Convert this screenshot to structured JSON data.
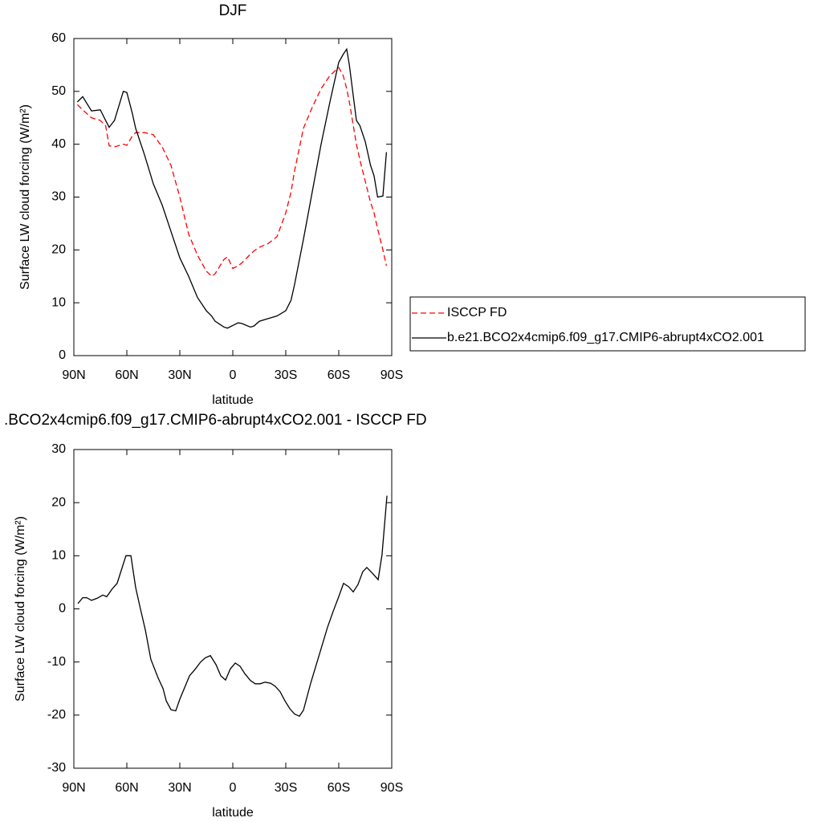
{
  "chart_data": [
    {
      "type": "line",
      "title": "DJF",
      "x_label": "latitude",
      "y_label": "Surface LW cloud forcing (W/m²)",
      "x": [
        88,
        85,
        80,
        75,
        72,
        70,
        67,
        62,
        60,
        57,
        55,
        50,
        45,
        40,
        35,
        30,
        25,
        20,
        15,
        12,
        10,
        5,
        3,
        0,
        -3,
        -5,
        -10,
        -12,
        -15,
        -20,
        -25,
        -30,
        -33,
        -35,
        -40,
        -45,
        -50,
        -55,
        -60,
        -62.5,
        -64.5,
        -66,
        -70,
        -72,
        -75,
        -78,
        -80,
        -82,
        -85,
        -87
      ],
      "series": [
        {
          "name": "ISCCP FD",
          "color": "#ff0000",
          "dashed": true,
          "values": [
            47.5,
            46.5,
            45,
            44.5,
            43.5,
            39.7,
            39.5,
            40,
            39.8,
            41.5,
            42.2,
            42.2,
            41.8,
            39.5,
            36,
            30,
            23,
            19,
            16,
            15,
            15.5,
            18.2,
            18.7,
            16.5,
            17,
            17.5,
            19.2,
            19.8,
            20.5,
            21.2,
            22.5,
            27,
            31,
            35,
            43,
            47,
            50.5,
            53,
            54.5,
            53,
            50.5,
            48,
            40,
            37,
            33,
            29,
            27,
            24,
            20,
            17
          ]
        },
        {
          "name": "b.e21.BCO2x4cmip6.f09_g17.CMIP6-abrupt4xCO2.001",
          "color": "#000000",
          "dashed": false,
          "values": [
            48,
            49,
            46.3,
            46.5,
            44.5,
            43.2,
            44.5,
            50,
            49.8,
            46,
            43,
            38,
            32.5,
            28.5,
            23.5,
            18.5,
            15,
            11,
            8.5,
            7.5,
            6.5,
            5.4,
            5.2,
            5.7,
            6.2,
            6.1,
            5.4,
            5.6,
            6.5,
            7,
            7.5,
            8.5,
            10.5,
            13.5,
            22,
            31,
            40,
            48,
            55.5,
            57,
            58,
            55,
            44.5,
            43.5,
            40.5,
            36,
            34,
            30,
            30.2,
            38.5
          ]
        }
      ],
      "xlim": [
        90,
        -90
      ],
      "xticks": [
        {
          "value": 90,
          "label": "90N"
        },
        {
          "value": 60,
          "label": "60N"
        },
        {
          "value": 30,
          "label": "30N"
        },
        0,
        {
          "value": -30,
          "label": "30S"
        },
        {
          "value": -60,
          "label": "60S"
        },
        {
          "value": -90,
          "label": "90S"
        }
      ],
      "ylim": [
        0,
        60
      ],
      "yticks": [
        0,
        10,
        20,
        30,
        40,
        50,
        60
      ],
      "legend": "right"
    },
    {
      "type": "line",
      "title": ".BCO2x4cmip6.f09_g17.CMIP6-abrupt4xCO2.001 - ISCCP FD",
      "x_label": "latitude",
      "y_label": "Surface LW cloud forcing (W/m²)",
      "x": [
        87.7,
        85,
        82.7,
        80,
        76.8,
        73.6,
        71.4,
        68.2,
        65.5,
        60.5,
        57.7,
        55,
        52.3,
        49.5,
        46.4,
        42.3,
        39.5,
        37.7,
        35,
        32.3,
        30,
        24.5,
        21.4,
        18.2,
        15.5,
        12.7,
        9.5,
        6.8,
        4.1,
        1.4,
        -1.4,
        -4.1,
        -6.8,
        -10,
        -12.7,
        -15.5,
        -18.2,
        -21.4,
        -24.1,
        -26.8,
        -29.5,
        -32.3,
        -35,
        -37.7,
        -40,
        -44.1,
        -49.1,
        -53.6,
        -56.8,
        -60,
        -62.7,
        -65.5,
        -68.2,
        -70.9,
        -73.6,
        -75.9,
        -79.1,
        -82.3,
        -84.5,
        -87.3
      ],
      "series": [
        {
          "color": "#000000",
          "dashed": false,
          "values": [
            1,
            2.1,
            2.1,
            1.6,
            2,
            2.6,
            2.3,
            3.8,
            4.8,
            10,
            10,
            4,
            0,
            -4,
            -9.5,
            -13,
            -15,
            -17.3,
            -19,
            -19.2,
            -17,
            -12.6,
            -11.4,
            -10,
            -9.2,
            -8.8,
            -10.5,
            -12.6,
            -13.4,
            -11.3,
            -10.2,
            -10.8,
            -12.2,
            -13.5,
            -14.1,
            -14.1,
            -13.8,
            -14,
            -14.6,
            -15.6,
            -17.3,
            -18.8,
            -19.8,
            -20.2,
            -19.1,
            -14,
            -8.5,
            -3.5,
            -0.5,
            2.3,
            4.8,
            4.2,
            3.2,
            4.6,
            7,
            7.8,
            6.7,
            5.5,
            10.2,
            21.3
          ]
        }
      ],
      "xlim": [
        90,
        -90
      ],
      "xticks": [
        {
          "value": 90,
          "label": "90N"
        },
        {
          "value": 60,
          "label": "60N"
        },
        {
          "value": 30,
          "label": "30N"
        },
        0,
        {
          "value": -30,
          "label": "30S"
        },
        {
          "value": -60,
          "label": "60S"
        },
        {
          "value": -90,
          "label": "90S"
        }
      ],
      "ylim": [
        -30,
        30
      ],
      "yticks": [
        -30,
        -20,
        -10,
        0,
        10,
        20,
        30
      ]
    }
  ]
}
